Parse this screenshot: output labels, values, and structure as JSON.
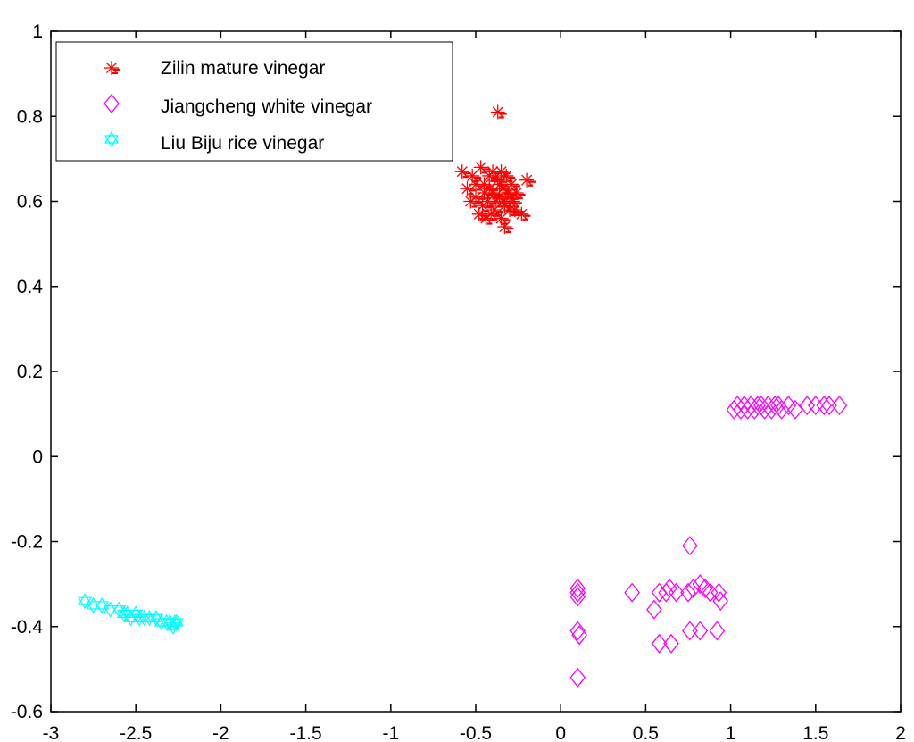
{
  "chart_data": {
    "type": "scatter",
    "title": "",
    "xlabel": "",
    "ylabel": "",
    "xlim": [
      -3,
      2
    ],
    "ylim": [
      -0.6,
      1
    ],
    "xticks": [
      -3,
      -2.5,
      -2,
      -1.5,
      -1,
      -0.5,
      0,
      0.5,
      1,
      1.5,
      2
    ],
    "yticks": [
      -0.6,
      -0.4,
      -0.2,
      0,
      0.2,
      0.4,
      0.6,
      0.8,
      1
    ],
    "xtick_labels": [
      "-3",
      "-2.5",
      "-2",
      "-1.5",
      "-1",
      "-0.5",
      "0",
      "0.5",
      "1",
      "1.5",
      "2"
    ],
    "ytick_labels": [
      "-0.6",
      "-0.4",
      "-0.2",
      "0",
      "0.2",
      "0.4",
      "0.6",
      "0.8",
      "1"
    ],
    "grid": false,
    "legend_position": "top-left",
    "series": [
      {
        "name": "Zilin mature vinegar",
        "marker": "asterisk",
        "color": "#ff0000",
        "points": [
          [
            -0.37,
            0.81
          ],
          [
            -0.58,
            0.67
          ],
          [
            -0.55,
            0.63
          ],
          [
            -0.52,
            0.66
          ],
          [
            -0.5,
            0.61
          ],
          [
            -0.47,
            0.68
          ],
          [
            -0.45,
            0.64
          ],
          [
            -0.43,
            0.6
          ],
          [
            -0.42,
            0.66
          ],
          [
            -0.4,
            0.62
          ],
          [
            -0.39,
            0.58
          ],
          [
            -0.37,
            0.65
          ],
          [
            -0.36,
            0.61
          ],
          [
            -0.35,
            0.67
          ],
          [
            -0.34,
            0.63
          ],
          [
            -0.33,
            0.59
          ],
          [
            -0.32,
            0.66
          ],
          [
            -0.31,
            0.62
          ],
          [
            -0.3,
            0.58
          ],
          [
            -0.29,
            0.64
          ],
          [
            -0.28,
            0.6
          ],
          [
            -0.26,
            0.62
          ],
          [
            -0.48,
            0.57
          ],
          [
            -0.46,
            0.59
          ],
          [
            -0.44,
            0.56
          ],
          [
            -0.41,
            0.57
          ],
          [
            -0.38,
            0.6
          ],
          [
            -0.33,
            0.54
          ],
          [
            -0.35,
            0.56
          ],
          [
            -0.53,
            0.6
          ],
          [
            -0.5,
            0.64
          ],
          [
            -0.4,
            0.67
          ],
          [
            -0.36,
            0.64
          ],
          [
            -0.3,
            0.61
          ],
          [
            -0.27,
            0.58
          ],
          [
            -0.2,
            0.65
          ],
          [
            -0.23,
            0.57
          ],
          [
            -0.45,
            0.62
          ],
          [
            -0.42,
            0.63
          ],
          [
            -0.34,
            0.6
          ]
        ]
      },
      {
        "name": "Jiangcheng white vinegar",
        "marker": "diamond",
        "color": "#ff00ff",
        "points": [
          [
            1.02,
            0.11
          ],
          [
            1.04,
            0.12
          ],
          [
            1.06,
            0.11
          ],
          [
            1.08,
            0.12
          ],
          [
            1.1,
            0.11
          ],
          [
            1.12,
            0.12
          ],
          [
            1.14,
            0.11
          ],
          [
            1.16,
            0.12
          ],
          [
            1.18,
            0.12
          ],
          [
            1.2,
            0.11
          ],
          [
            1.22,
            0.12
          ],
          [
            1.24,
            0.11
          ],
          [
            1.26,
            0.12
          ],
          [
            1.28,
            0.12
          ],
          [
            1.3,
            0.11
          ],
          [
            1.34,
            0.12
          ],
          [
            1.38,
            0.11
          ],
          [
            1.45,
            0.12
          ],
          [
            1.5,
            0.12
          ],
          [
            1.55,
            0.12
          ],
          [
            1.58,
            0.12
          ],
          [
            1.64,
            0.12
          ],
          [
            0.1,
            -0.31
          ],
          [
            0.1,
            -0.32
          ],
          [
            0.1,
            -0.33
          ],
          [
            0.1,
            -0.41
          ],
          [
            0.11,
            -0.42
          ],
          [
            0.1,
            -0.52
          ],
          [
            0.42,
            -0.32
          ],
          [
            0.55,
            -0.36
          ],
          [
            0.58,
            -0.32
          ],
          [
            0.62,
            -0.32
          ],
          [
            0.64,
            -0.31
          ],
          [
            0.68,
            -0.32
          ],
          [
            0.75,
            -0.32
          ],
          [
            0.78,
            -0.31
          ],
          [
            0.82,
            -0.3
          ],
          [
            0.85,
            -0.31
          ],
          [
            0.88,
            -0.32
          ],
          [
            0.93,
            -0.32
          ],
          [
            0.94,
            -0.34
          ],
          [
            0.76,
            -0.21
          ],
          [
            0.58,
            -0.44
          ],
          [
            0.65,
            -0.44
          ],
          [
            0.76,
            -0.41
          ],
          [
            0.82,
            -0.41
          ],
          [
            0.92,
            -0.41
          ]
        ]
      },
      {
        "name": "Liu Biju rice vinegar",
        "marker": "hexagram",
        "color": "#00ffff",
        "points": [
          [
            -2.8,
            -0.34
          ],
          [
            -2.75,
            -0.35
          ],
          [
            -2.7,
            -0.35
          ],
          [
            -2.65,
            -0.36
          ],
          [
            -2.6,
            -0.36
          ],
          [
            -2.57,
            -0.37
          ],
          [
            -2.55,
            -0.37
          ],
          [
            -2.53,
            -0.38
          ],
          [
            -2.5,
            -0.37
          ],
          [
            -2.48,
            -0.38
          ],
          [
            -2.45,
            -0.38
          ],
          [
            -2.42,
            -0.38
          ],
          [
            -2.38,
            -0.38
          ],
          [
            -2.35,
            -0.39
          ],
          [
            -2.32,
            -0.39
          ],
          [
            -2.3,
            -0.39
          ],
          [
            -2.28,
            -0.4
          ],
          [
            -2.27,
            -0.39
          ],
          [
            -2.26,
            -0.39
          ]
        ]
      }
    ]
  }
}
